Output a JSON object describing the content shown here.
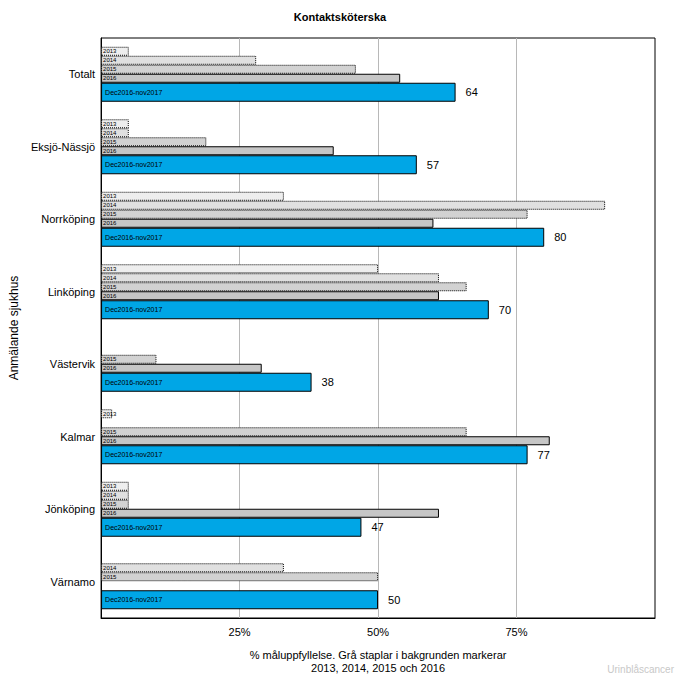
{
  "chart_data": {
    "type": "bar",
    "orientation": "horizontal",
    "title": "Kontaktsköterska",
    "ylabel": "Anmälande sjukhus",
    "xlabel": "% måluppfyllelse. Grå staplar i bakgrunden markerar\n2013, 2014, 2015 och 2016",
    "annotation": "Urinblåscancer",
    "categories": [
      "Totalt",
      "Eksjö-Nässjö",
      "Norrköping",
      "Linköping",
      "Västervik",
      "Kalmar",
      "Jönköping",
      "Värnamo"
    ],
    "series": [
      {
        "name": "2013",
        "color": "#eeeeee",
        "line_style": "dotted",
        "values": [
          5,
          5,
          33,
          50,
          null,
          2,
          5,
          null
        ]
      },
      {
        "name": "2014",
        "color": "#e0e0e0",
        "line_style": "dotted",
        "values": [
          28,
          5,
          91,
          61,
          null,
          null,
          5,
          33
        ]
      },
      {
        "name": "2015",
        "color": "#d2d2d2",
        "line_style": "dotted",
        "values": [
          46,
          19,
          77,
          66,
          10,
          66,
          5,
          50
        ]
      },
      {
        "name": "2016",
        "color": "#c6c6c6",
        "line_style": "solid",
        "values": [
          54,
          42,
          60,
          61,
          29,
          81,
          61,
          null
        ]
      },
      {
        "name": "Dec2016-nov2017",
        "color": "#00a6e6",
        "line_style": "solid",
        "data_labels": true,
        "values": [
          64,
          57,
          80,
          70,
          38,
          77,
          47,
          50
        ]
      }
    ],
    "xlim": [
      0,
      100
    ],
    "xticks": [
      {
        "value": 25,
        "label": "25%"
      },
      {
        "value": 50,
        "label": "50%"
      },
      {
        "value": 75,
        "label": "75%"
      }
    ],
    "grid": true
  }
}
